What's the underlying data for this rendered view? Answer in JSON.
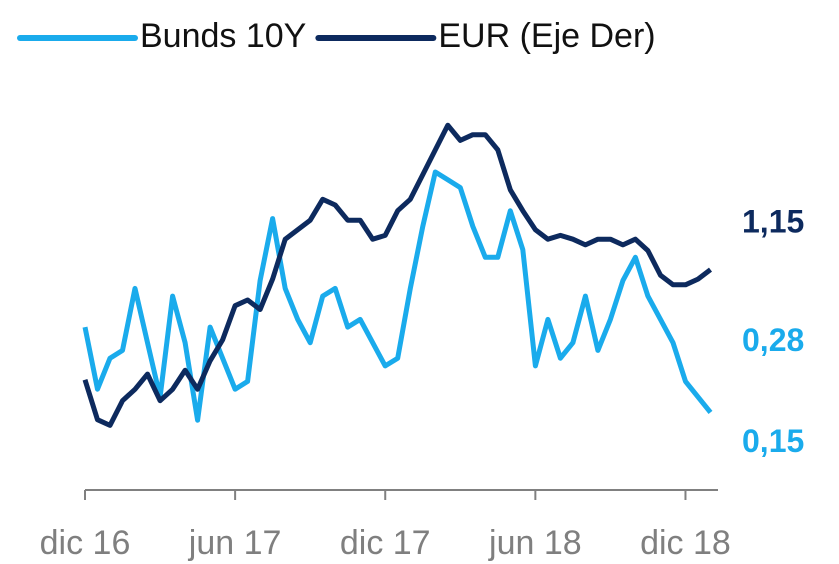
{
  "chart_data": {
    "type": "line",
    "xlim": [
      0,
      25.3
    ],
    "xticks": [
      {
        "value": 0,
        "label": "dic 16"
      },
      {
        "value": 6,
        "label": "jun 17"
      },
      {
        "value": 12,
        "label": "dic 17"
      },
      {
        "value": 18,
        "label": "jun 18"
      },
      {
        "value": 24,
        "label": "dic 18"
      }
    ],
    "x": [
      0,
      0.5,
      1,
      1.5,
      2,
      2.5,
      3,
      3.5,
      4,
      4.5,
      5,
      5.5,
      6,
      6.5,
      7,
      7.5,
      8,
      8.5,
      9,
      9.5,
      10,
      10.5,
      11,
      11.5,
      12,
      12.5,
      13,
      13.5,
      14,
      14.5,
      15,
      15.5,
      16,
      16.5,
      17,
      17.5,
      18,
      18.5,
      19,
      19.5,
      20,
      20.5,
      21,
      21.5,
      22,
      22.5,
      23,
      23.5,
      24,
      24.5,
      25
    ],
    "ylim": [
      0.09,
      0.58
    ],
    "yticks": [
      {
        "value": 0.15,
        "label": "0,15"
      },
      {
        "value": 0.28,
        "label": "0,28"
      }
    ],
    "y2lim": [
      1.01,
      1.21
    ],
    "y2ticks": [
      {
        "value": 1.15,
        "label": "1,15"
      }
    ],
    "legend": "top",
    "series": [
      {
        "name": "Bunds 10Y",
        "color": "#1aabec",
        "axis": "y",
        "values": [
          0.3,
          0.22,
          0.26,
          0.27,
          0.35,
          0.28,
          0.21,
          0.34,
          0.28,
          0.18,
          0.3,
          0.26,
          0.22,
          0.23,
          0.36,
          0.44,
          0.35,
          0.31,
          0.28,
          0.34,
          0.35,
          0.3,
          0.31,
          0.28,
          0.25,
          0.26,
          0.35,
          0.43,
          0.5,
          0.49,
          0.48,
          0.43,
          0.39,
          0.39,
          0.45,
          0.4,
          0.25,
          0.31,
          0.26,
          0.28,
          0.34,
          0.27,
          0.31,
          0.36,
          0.39,
          0.34,
          0.31,
          0.28,
          0.23,
          0.21,
          0.19
        ]
      },
      {
        "name": "EUR (Eje Der)",
        "color": "#0d2a5e",
        "axis": "y2",
        "values": [
          1.068,
          1.047,
          1.044,
          1.057,
          1.063,
          1.071,
          1.057,
          1.063,
          1.073,
          1.063,
          1.078,
          1.089,
          1.107,
          1.11,
          1.105,
          1.121,
          1.142,
          1.147,
          1.152,
          1.163,
          1.16,
          1.152,
          1.152,
          1.142,
          1.144,
          1.157,
          1.163,
          1.176,
          1.189,
          1.202,
          1.194,
          1.197,
          1.197,
          1.189,
          1.168,
          1.157,
          1.147,
          1.142,
          1.144,
          1.142,
          1.139,
          1.142,
          1.142,
          1.139,
          1.142,
          1.136,
          1.123,
          1.118,
          1.118,
          1.121,
          1.126
        ]
      }
    ]
  }
}
